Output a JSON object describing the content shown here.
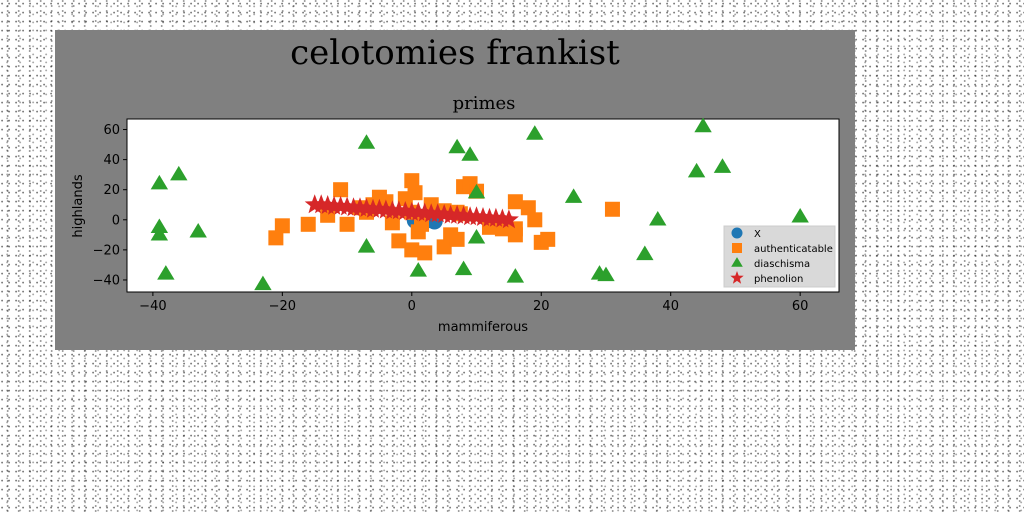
{
  "chart_data": {
    "type": "scatter",
    "suptitle": "celotomies frankist",
    "title": "primes",
    "xlabel": "mammiferous",
    "ylabel": "highlands",
    "xlim": [
      -44,
      66
    ],
    "ylim": [
      -48,
      67
    ],
    "xticks": [
      -40,
      -20,
      0,
      20,
      40,
      60
    ],
    "yticks": [
      -40,
      -20,
      0,
      20,
      40,
      60
    ],
    "grid": false,
    "legend_position": "lower-right",
    "colors": {
      "figure_background": "#808080",
      "plot_background": "#ffffff",
      "legend_background": "#d9d9d9"
    },
    "series": [
      {
        "name": "X",
        "marker": "circle",
        "color": "#1f77b4",
        "points": [
          [
            1,
            1
          ],
          [
            2,
            -1
          ],
          [
            3,
            0
          ],
          [
            1.5,
            -2
          ],
          [
            2.5,
            0.5
          ],
          [
            0.5,
            -0.5
          ],
          [
            3.5,
            -1
          ],
          [
            2,
            1.5
          ]
        ]
      },
      {
        "name": "authenticatable",
        "marker": "square",
        "color": "#ff7f0e",
        "points": [
          [
            -20,
            -4
          ],
          [
            -21,
            -12
          ],
          [
            -16,
            -3
          ],
          [
            -13,
            3
          ],
          [
            -11,
            20
          ],
          [
            -10,
            -3
          ],
          [
            -8,
            8
          ],
          [
            -7,
            5
          ],
          [
            -6,
            10
          ],
          [
            -5,
            15
          ],
          [
            -4,
            12
          ],
          [
            -3,
            -2
          ],
          [
            -2,
            -14
          ],
          [
            -1,
            14
          ],
          [
            0,
            5
          ],
          [
            0,
            -20
          ],
          [
            0,
            26
          ],
          [
            0.5,
            18
          ],
          [
            1,
            -8
          ],
          [
            1.5,
            -3
          ],
          [
            2,
            -22
          ],
          [
            3,
            10
          ],
          [
            5,
            -18
          ],
          [
            5,
            6
          ],
          [
            6,
            -10
          ],
          [
            7,
            -13
          ],
          [
            7,
            5
          ],
          [
            7.5,
            4
          ],
          [
            8,
            22
          ],
          [
            9,
            24
          ],
          [
            10,
            19
          ],
          [
            12,
            -5
          ],
          [
            14,
            -6
          ],
          [
            16,
            -10
          ],
          [
            16,
            -6
          ],
          [
            16,
            12
          ],
          [
            18,
            8
          ],
          [
            19,
            0
          ],
          [
            20,
            -15
          ],
          [
            21,
            -13
          ],
          [
            31,
            7
          ]
        ]
      },
      {
        "name": "diaschisma",
        "marker": "triangle",
        "color": "#2ca02c",
        "points": [
          [
            -39,
            24
          ],
          [
            -39,
            -5
          ],
          [
            -39,
            -10
          ],
          [
            -38,
            -36
          ],
          [
            -36,
            30
          ],
          [
            -33,
            -8
          ],
          [
            -23,
            -43
          ],
          [
            -7,
            51
          ],
          [
            -7,
            -18
          ],
          [
            1,
            -34
          ],
          [
            7,
            48
          ],
          [
            8,
            -33
          ],
          [
            9,
            43
          ],
          [
            10,
            18
          ],
          [
            10,
            -12
          ],
          [
            16,
            -38
          ],
          [
            19,
            57
          ],
          [
            25,
            15
          ],
          [
            29,
            -36
          ],
          [
            30,
            -37
          ],
          [
            36,
            -23
          ],
          [
            38,
            0
          ],
          [
            44,
            32
          ],
          [
            45,
            62
          ],
          [
            48,
            35
          ],
          [
            60,
            2
          ]
        ]
      },
      {
        "name": "phenolion",
        "marker": "star",
        "color": "#d62728",
        "points": [
          [
            -15,
            10
          ],
          [
            -14,
            10
          ],
          [
            -13,
            9.5
          ],
          [
            -12,
            9
          ],
          [
            -11,
            9
          ],
          [
            -10,
            8.5
          ],
          [
            -9,
            8
          ],
          [
            -8,
            8
          ],
          [
            -7,
            7.5
          ],
          [
            -6,
            7
          ],
          [
            -5,
            7
          ],
          [
            -4,
            6.5
          ],
          [
            -3,
            6
          ],
          [
            -2,
            6
          ],
          [
            -1,
            5.5
          ],
          [
            0,
            5
          ],
          [
            1,
            5
          ],
          [
            2,
            4.5
          ],
          [
            3,
            4
          ],
          [
            4,
            4
          ],
          [
            5,
            3.5
          ],
          [
            6,
            3
          ],
          [
            7,
            3
          ],
          [
            8,
            2.5
          ],
          [
            9,
            2
          ],
          [
            10,
            2
          ],
          [
            11,
            1.5
          ],
          [
            12,
            1
          ],
          [
            13,
            1
          ],
          [
            14,
            0.5
          ],
          [
            15,
            0
          ]
        ]
      }
    ]
  }
}
